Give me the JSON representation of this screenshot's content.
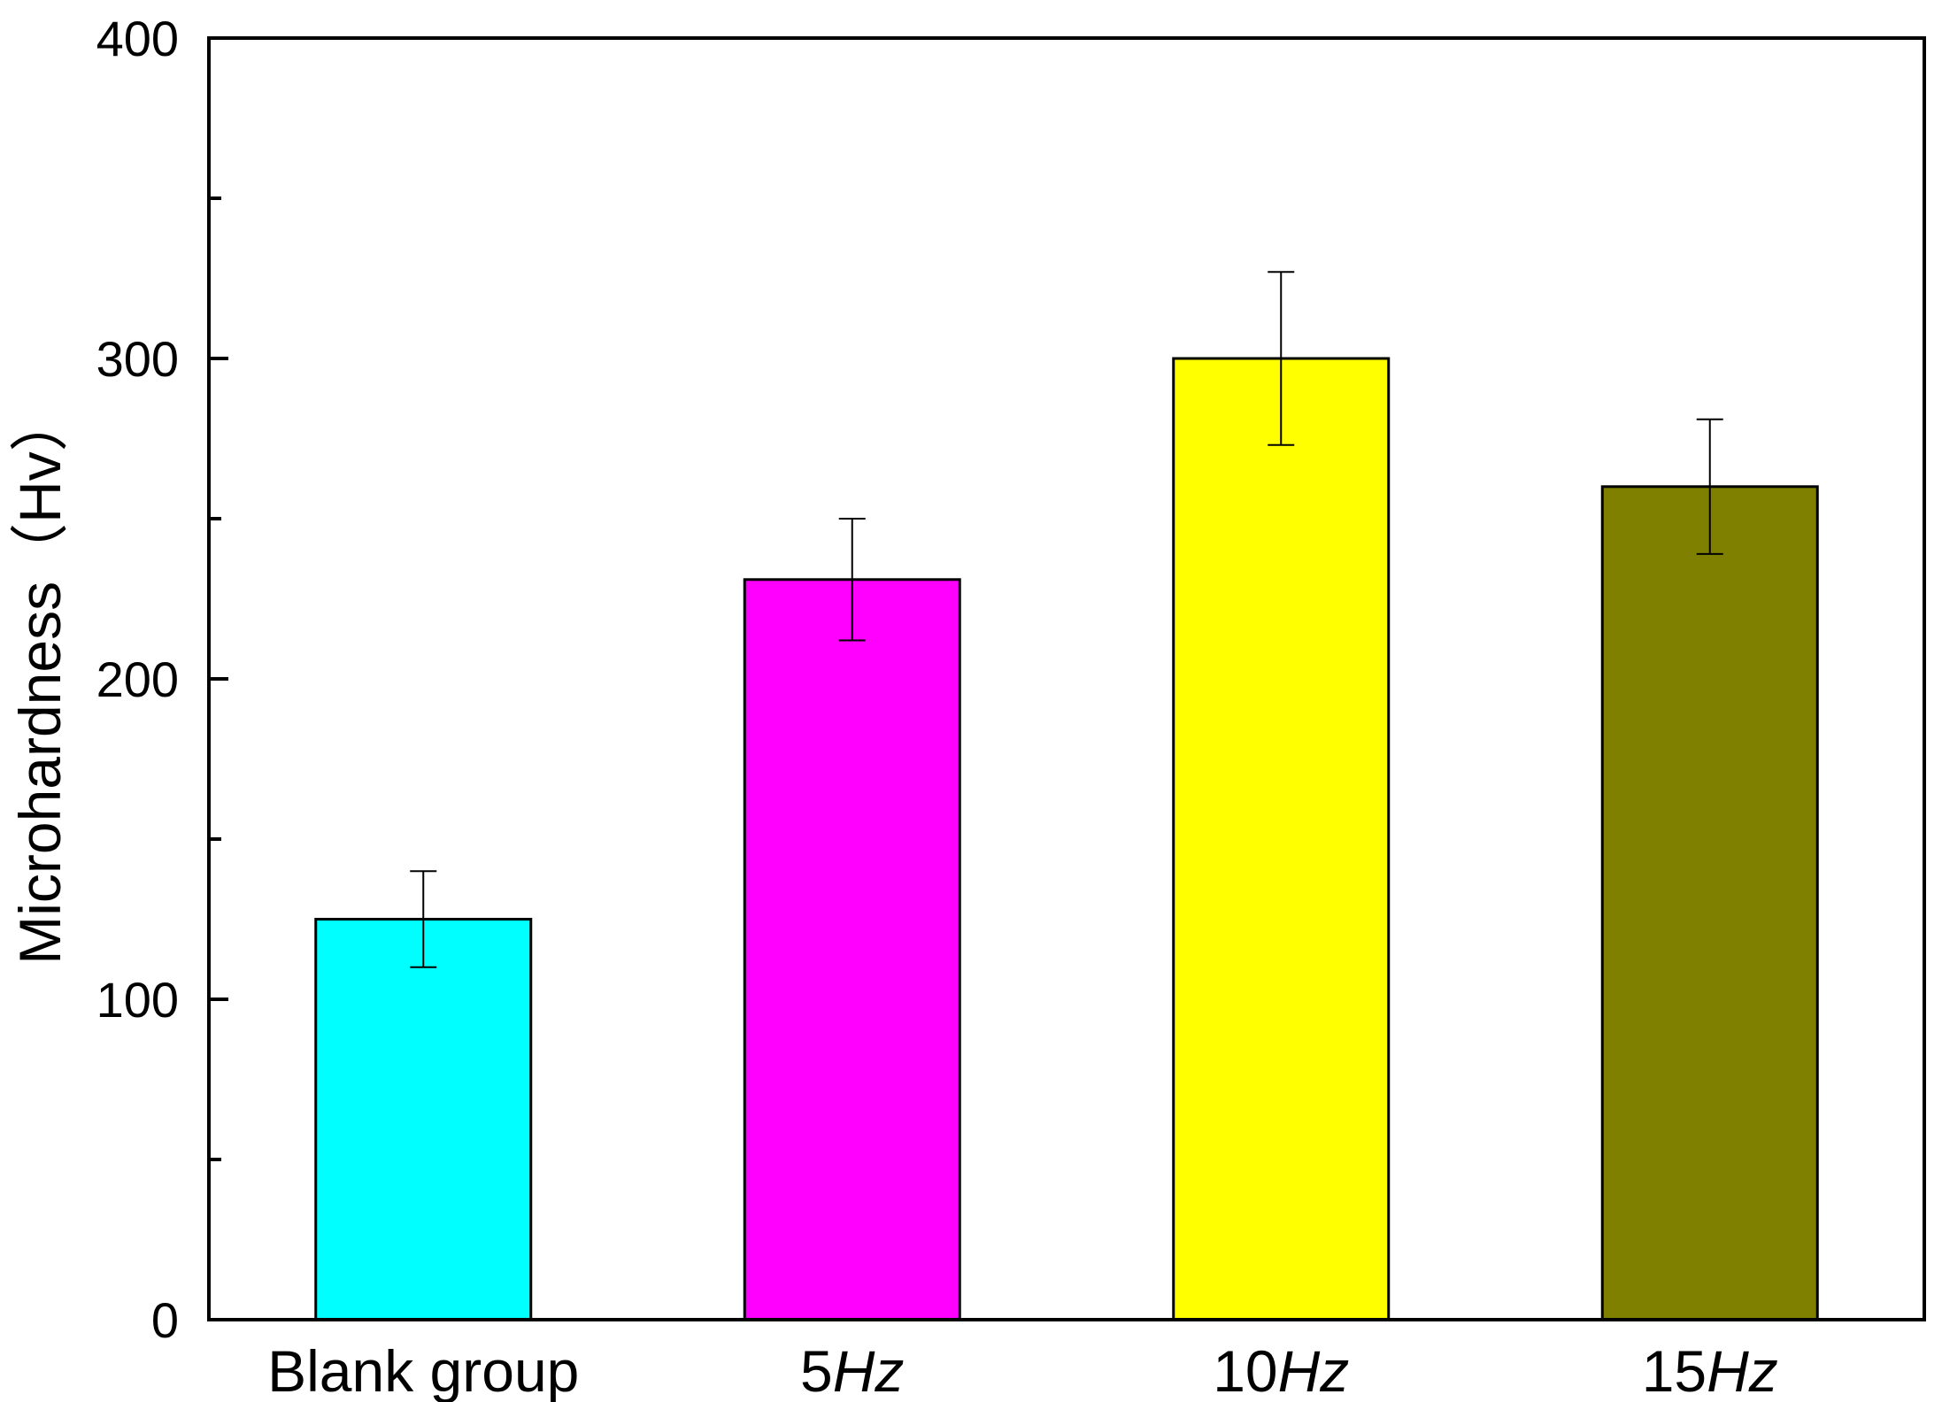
{
  "chart_data": {
    "type": "bar",
    "categories": [
      {
        "text": "Blank group",
        "italic": ""
      },
      {
        "text": "5",
        "italic": "Hz"
      },
      {
        "text": "10",
        "italic": "Hz"
      },
      {
        "text": "15",
        "italic": "Hz"
      }
    ],
    "values": [
      125,
      231,
      300,
      260
    ],
    "error": [
      15,
      19,
      27,
      21
    ],
    "colors": [
      "#00ffff",
      "#ff00ff",
      "#ffff00",
      "#808000"
    ],
    "ylabel": "Microhardness（Hv）",
    "ylim": [
      0,
      400
    ],
    "major_ticks": [
      0,
      100,
      200,
      300,
      400
    ],
    "minor_ticks": [
      50,
      150,
      250,
      350
    ],
    "grid": false,
    "legend": "none"
  }
}
